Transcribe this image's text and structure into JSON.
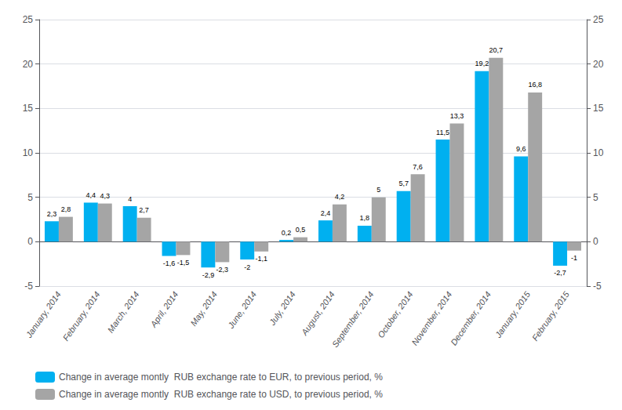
{
  "chart_data": {
    "type": "bar",
    "categories": [
      "January, 2014",
      "February, 2014",
      "March, 2014",
      "April, 2014",
      "May, 2014",
      "June, 2014",
      "July, 2014",
      "August, 2014",
      "September, 2014",
      "October, 2014",
      "November, 2014",
      "December, 2014",
      "January, 2015",
      "February, 2015"
    ],
    "series": [
      {
        "name": "Change in average montly  RUB exchange rate to EUR, to previous period, %",
        "color": "#00B0F0",
        "values": [
          2.3,
          4.4,
          4.0,
          -1.6,
          -2.9,
          -2.0,
          0.2,
          2.4,
          1.8,
          5.7,
          11.5,
          19.2,
          9.6,
          -2.7
        ],
        "value_labels": [
          "2,3",
          "4,4",
          "4",
          "-1,6",
          "-2,9",
          "-2",
          "0,2",
          "2,4",
          "1,8",
          "5,7",
          "11,5",
          "19,2",
          "9,6",
          "-2,7"
        ]
      },
      {
        "name": "Change in average montly  RUB exchange rate to USD, to previous period, %",
        "color": "#A5A5A5",
        "values": [
          2.8,
          4.3,
          2.7,
          -1.5,
          -2.3,
          -1.1,
          0.5,
          4.2,
          5.0,
          7.6,
          13.3,
          20.7,
          16.8,
          -1.0
        ],
        "value_labels": [
          "2,8",
          "4,3",
          "2,7",
          "-1,5",
          "-2,3",
          "-1,1",
          "0,5",
          "4,2",
          "5",
          "7,6",
          "13,3",
          "20,7",
          "16,8",
          "-1"
        ]
      }
    ],
    "ylim": [
      -5,
      25
    ],
    "yticks": [
      -5,
      0,
      5,
      10,
      15,
      20,
      25
    ],
    "y2lim": [
      -5,
      25
    ],
    "y2ticks": [
      -5,
      0,
      5,
      10,
      15,
      20,
      25
    ],
    "grid": true,
    "legend": "bottom",
    "data_labels": true
  }
}
